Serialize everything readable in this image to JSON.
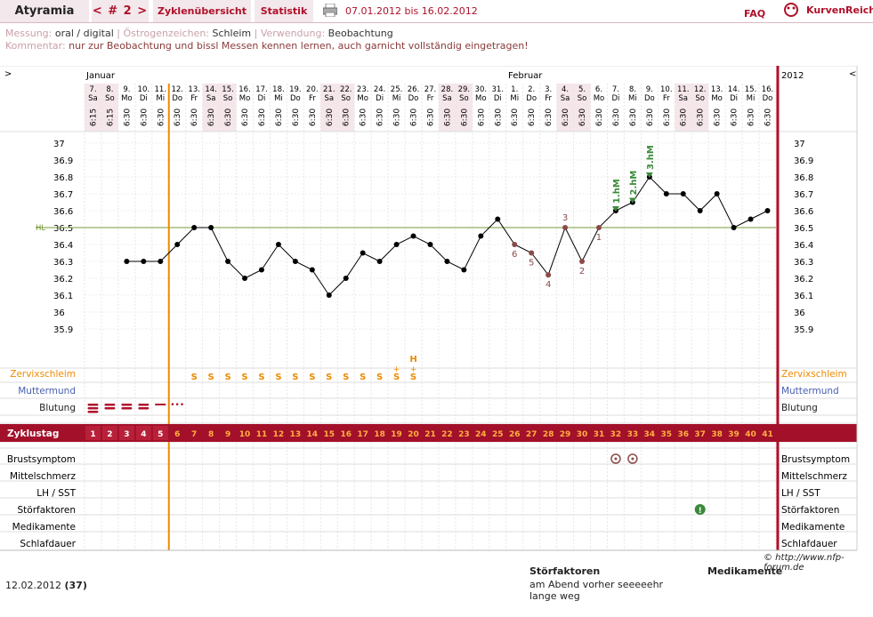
{
  "header": {
    "title": "Atyramia",
    "cycle": "< # 2 >",
    "tab1": "Zyklenübersicht",
    "tab2": "Statistik",
    "range": "07.01.2012 bis 16.02.2012",
    "faq": "FAQ",
    "brand": "KurvenReich"
  },
  "meta": {
    "mess_lbl": "Messung:",
    "mess_val": "oral / digital",
    "oest_lbl": "Östrogenzeichen:",
    "oest_val": "Schleim",
    "verw_lbl": "Verwendung:",
    "verw_val": "Beobachtung",
    "komm_lbl": "Kommentar:",
    "komm_val": "nur zur Beobachtung und bissl Messen kennen lernen, auch garnicht vollständig eingetragen!"
  },
  "nav": {
    "left": ">",
    "right": "<",
    "year": "2012"
  },
  "months": [
    "Januar",
    "Februar"
  ],
  "days": [
    [
      "7.",
      "Sa",
      "6:15",
      1
    ],
    [
      "8.",
      "So",
      "6:15",
      1
    ],
    [
      "9.",
      "Mo",
      "6:30",
      0
    ],
    [
      "10.",
      "Di",
      "6:30",
      0
    ],
    [
      "11.",
      "Mi",
      "6:30",
      0
    ],
    [
      "12.",
      "Do",
      "6:30",
      0
    ],
    [
      "13.",
      "Fr",
      "6:30",
      0
    ],
    [
      "14.",
      "Sa",
      "6:30",
      1
    ],
    [
      "15.",
      "So",
      "6:30",
      1
    ],
    [
      "16.",
      "Mo",
      "6:30",
      0
    ],
    [
      "17.",
      "Di",
      "6:30",
      0
    ],
    [
      "18.",
      "Mi",
      "6:30",
      0
    ],
    [
      "19.",
      "Do",
      "6:30",
      0
    ],
    [
      "20.",
      "Fr",
      "6:30",
      0
    ],
    [
      "21.",
      "Sa",
      "6:30",
      1
    ],
    [
      "22.",
      "So",
      "6:30",
      1
    ],
    [
      "23.",
      "Mo",
      "6:30",
      0
    ],
    [
      "24.",
      "Di",
      "6:30",
      0
    ],
    [
      "25.",
      "Mi",
      "6:30",
      0
    ],
    [
      "26.",
      "Do",
      "6:30",
      0
    ],
    [
      "27.",
      "Fr",
      "6:30",
      0
    ],
    [
      "28.",
      "Sa",
      "6:30",
      1
    ],
    [
      "29.",
      "So",
      "6:30",
      1
    ],
    [
      "30.",
      "Mo",
      "6:30",
      0
    ],
    [
      "31.",
      "Di",
      "6:30",
      0
    ],
    [
      "1.",
      "Mi",
      "6:30",
      0
    ],
    [
      "2.",
      "Do",
      "6:30",
      0
    ],
    [
      "3.",
      "Fr",
      "6:30",
      0
    ],
    [
      "4.",
      "Sa",
      "6:30",
      1
    ],
    [
      "5.",
      "So",
      "6:30",
      1
    ],
    [
      "6.",
      "Mo",
      "6:30",
      0
    ],
    [
      "7.",
      "Di",
      "6:30",
      0
    ],
    [
      "8.",
      "Mi",
      "6:30",
      0
    ],
    [
      "9.",
      "Do",
      "6:30",
      0
    ],
    [
      "10.",
      "Fr",
      "6:30",
      0
    ],
    [
      "11.",
      "Sa",
      "6:30",
      1
    ],
    [
      "12.",
      "So",
      "6:30",
      1
    ],
    [
      "13.",
      "Mo",
      "6:30",
      0
    ],
    [
      "14.",
      "Di",
      "6:30",
      0
    ],
    [
      "15.",
      "Mi",
      "6:30",
      0
    ],
    [
      "16.",
      "Do",
      "6:30",
      0
    ]
  ],
  "chart_data": {
    "type": "line",
    "ylim": [
      35.8,
      37.05
    ],
    "yticks": [
      "37",
      "36.9",
      "36.8",
      "36.7",
      "36.6",
      "36.5",
      "36.4",
      "36.3",
      "36.2",
      "36.1",
      "36",
      "35.9"
    ],
    "hl_label": "HL",
    "hl_value": 36.5,
    "x": [
      3,
      4,
      5,
      6,
      7,
      8,
      9,
      10,
      11,
      12,
      13,
      14,
      15,
      16,
      17,
      18,
      19,
      20,
      21,
      22,
      23,
      24,
      25,
      26,
      27,
      28,
      29,
      30,
      31,
      32,
      33,
      34,
      35,
      36,
      37,
      38,
      39,
      40,
      41
    ],
    "values": [
      36.3,
      36.3,
      36.3,
      36.4,
      36.5,
      36.5,
      36.3,
      36.2,
      36.25,
      36.4,
      36.3,
      36.25,
      36.1,
      36.2,
      36.35,
      36.3,
      36.4,
      36.45,
      36.4,
      36.3,
      36.25,
      36.45,
      36.55,
      36.4,
      36.35,
      36.22,
      36.5,
      36.3,
      36.5,
      36.6,
      36.65,
      36.8,
      36.7,
      36.7,
      36.6,
      36.7,
      36.5,
      36.55,
      36.6
    ],
    "low_labels": [
      [
        "6",
        26
      ],
      [
        "5",
        27
      ],
      [
        "4",
        28
      ],
      [
        "3",
        29
      ],
      [
        "2",
        30
      ],
      [
        "1",
        31
      ]
    ],
    "high_labels": [
      [
        "1.hM",
        32
      ],
      [
        "2.hM",
        33
      ],
      [
        "3.hM",
        34
      ]
    ]
  },
  "rows": {
    "zervix": "Zervixschleim",
    "mutter": "Muttermund",
    "blutung": "Blutung",
    "zyklustag": "Zyklustag",
    "brust": "Brustsymptom",
    "mittel": "Mittelschmerz",
    "lh": "LH / SST",
    "stoer": "Störfaktoren",
    "medi": "Medikamente",
    "schlaf": "Schlafdauer"
  },
  "zervix_marks": [
    [
      "S",
      7
    ],
    [
      "S",
      8
    ],
    [
      "S",
      9
    ],
    [
      "S",
      10
    ],
    [
      "S",
      11
    ],
    [
      "S",
      12
    ],
    [
      "S",
      13
    ],
    [
      "S",
      14
    ],
    [
      "S",
      15
    ],
    [
      "S",
      16
    ],
    [
      "S",
      17
    ],
    [
      "S",
      18
    ],
    [
      "S+",
      19
    ],
    [
      "S+",
      20
    ]
  ],
  "zervix_h": "H",
  "copyright": "© http://www.nfp-forum.de",
  "footer": {
    "date": "12.02.2012",
    "day": "(37)",
    "stoer_h": "Störfaktoren",
    "stoer_v": "am Abend vorher seeeeehr lange weg",
    "medi_h": "Medikamente"
  },
  "colors": {
    "accent": "#b0102a",
    "orange": "#ee8a00",
    "green": "#3a8a3a",
    "blue": "#4a5fb0"
  }
}
